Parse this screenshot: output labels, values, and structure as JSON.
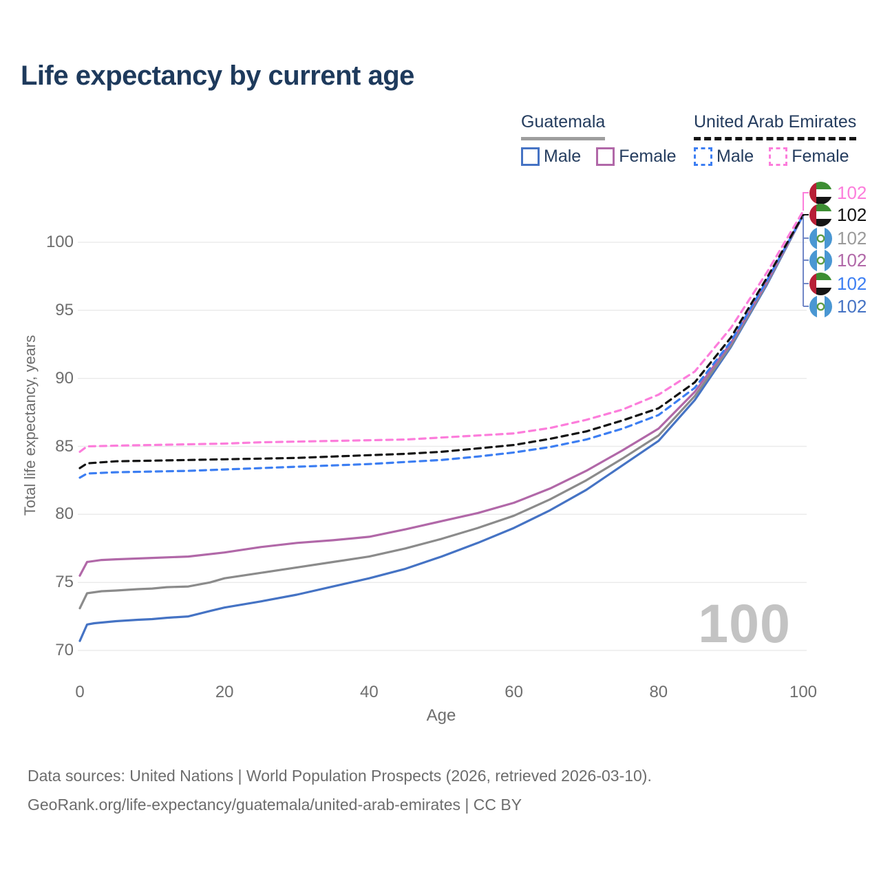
{
  "title": "Life expectancy by current age",
  "legend": {
    "groups": [
      {
        "country": "Guatemala",
        "line_style": "solid",
        "underline_color": "#9e9e9e",
        "items": [
          {
            "label": "Male",
            "color": "#4573c4"
          },
          {
            "label": "Female",
            "color": "#b168a8"
          }
        ]
      },
      {
        "country": "United Arab Emirates",
        "line_style": "dashed",
        "underline_color": "#141414",
        "items": [
          {
            "label": "Male",
            "color": "#3c7ef2"
          },
          {
            "label": "Female",
            "color": "#fc7ddb"
          }
        ]
      }
    ]
  },
  "age_indicator": "100",
  "end_labels": [
    {
      "flag": "are",
      "value": "102",
      "color": "#fc7ddb",
      "series": "United Arab Emirates Female"
    },
    {
      "flag": "are",
      "value": "102",
      "color": "#141414",
      "series": "United Arab Emirates Total"
    },
    {
      "flag": "gtm",
      "value": "102",
      "color": "#9a9a9a",
      "series": "Guatemala Total"
    },
    {
      "flag": "gtm",
      "value": "102",
      "color": "#b168a8",
      "series": "Guatemala Female"
    },
    {
      "flag": "are",
      "value": "102",
      "color": "#3c7ef2",
      "series": "United Arab Emirates Male"
    },
    {
      "flag": "gtm",
      "value": "102",
      "color": "#4573c4",
      "series": "Guatemala Male"
    }
  ],
  "footer": {
    "line1": "Data sources: United Nations | World Population Prospects (2026, retrieved 2026-03-10).",
    "line2": "GeoRank.org/life-expectancy/guatemala/united-arab-emirates | CC BY"
  },
  "chart_data": {
    "type": "line",
    "title": "Life expectancy by current age",
    "xlabel": "Age",
    "ylabel": "Total life expectancy, years",
    "xlim": [
      0,
      100
    ],
    "ylim": [
      70,
      102.5
    ],
    "xticks": [
      0,
      20,
      40,
      60,
      80,
      100
    ],
    "yticks": [
      70,
      75,
      80,
      85,
      90,
      95,
      100
    ],
    "grid": "horizontal",
    "gridline_color": "#ebebeb",
    "legend_position": "top-right",
    "series": [
      {
        "name": "Guatemala Male",
        "color": "#4573c4",
        "dash": false,
        "points": [
          [
            0,
            70.7
          ],
          [
            1,
            71.9
          ],
          [
            2,
            72.0
          ],
          [
            3,
            72.05
          ],
          [
            4,
            72.1
          ],
          [
            5,
            72.15
          ],
          [
            8,
            72.25
          ],
          [
            10,
            72.3
          ],
          [
            12,
            72.4
          ],
          [
            15,
            72.5
          ],
          [
            18,
            72.9
          ],
          [
            20,
            73.15
          ],
          [
            25,
            73.6
          ],
          [
            30,
            74.1
          ],
          [
            35,
            74.7
          ],
          [
            40,
            75.3
          ],
          [
            45,
            76.0
          ],
          [
            50,
            76.9
          ],
          [
            55,
            77.9
          ],
          [
            60,
            79.0
          ],
          [
            65,
            80.3
          ],
          [
            70,
            81.8
          ],
          [
            75,
            83.6
          ],
          [
            80,
            85.4
          ],
          [
            85,
            88.4
          ],
          [
            90,
            92.3
          ],
          [
            95,
            96.9
          ],
          [
            100,
            102
          ]
        ]
      },
      {
        "name": "Guatemala Total",
        "color": "#8b8b8b",
        "dash": false,
        "points": [
          [
            0,
            73.1
          ],
          [
            1,
            74.2
          ],
          [
            3,
            74.35
          ],
          [
            5,
            74.4
          ],
          [
            8,
            74.5
          ],
          [
            10,
            74.55
          ],
          [
            12,
            74.65
          ],
          [
            15,
            74.7
          ],
          [
            18,
            75.0
          ],
          [
            20,
            75.3
          ],
          [
            25,
            75.7
          ],
          [
            30,
            76.1
          ],
          [
            35,
            76.5
          ],
          [
            40,
            76.9
          ],
          [
            45,
            77.5
          ],
          [
            50,
            78.2
          ],
          [
            55,
            79.0
          ],
          [
            60,
            79.9
          ],
          [
            65,
            81.1
          ],
          [
            70,
            82.5
          ],
          [
            75,
            84.1
          ],
          [
            80,
            85.8
          ],
          [
            85,
            88.7
          ],
          [
            90,
            92.4
          ],
          [
            95,
            97.0
          ],
          [
            100,
            102
          ]
        ]
      },
      {
        "name": "Guatemala Female",
        "color": "#b168a8",
        "dash": false,
        "points": [
          [
            0,
            75.5
          ],
          [
            1,
            76.5
          ],
          [
            3,
            76.65
          ],
          [
            5,
            76.7
          ],
          [
            10,
            76.8
          ],
          [
            15,
            76.9
          ],
          [
            20,
            77.2
          ],
          [
            25,
            77.6
          ],
          [
            30,
            77.9
          ],
          [
            35,
            78.1
          ],
          [
            40,
            78.35
          ],
          [
            45,
            78.9
          ],
          [
            50,
            79.5
          ],
          [
            55,
            80.1
          ],
          [
            60,
            80.85
          ],
          [
            65,
            81.9
          ],
          [
            70,
            83.2
          ],
          [
            75,
            84.7
          ],
          [
            80,
            86.3
          ],
          [
            85,
            89.0
          ],
          [
            90,
            92.6
          ],
          [
            95,
            97.1
          ],
          [
            100,
            102
          ]
        ]
      },
      {
        "name": "United Arab Emirates Male",
        "color": "#3c7ef2",
        "dash": true,
        "points": [
          [
            0,
            82.7
          ],
          [
            1,
            83.0
          ],
          [
            5,
            83.1
          ],
          [
            10,
            83.15
          ],
          [
            15,
            83.2
          ],
          [
            20,
            83.3
          ],
          [
            25,
            83.4
          ],
          [
            30,
            83.5
          ],
          [
            35,
            83.6
          ],
          [
            40,
            83.7
          ],
          [
            45,
            83.85
          ],
          [
            50,
            84.0
          ],
          [
            55,
            84.25
          ],
          [
            60,
            84.55
          ],
          [
            65,
            84.95
          ],
          [
            70,
            85.5
          ],
          [
            75,
            86.3
          ],
          [
            80,
            87.3
          ],
          [
            85,
            89.3
          ],
          [
            90,
            92.7
          ],
          [
            95,
            97.2
          ],
          [
            100,
            102
          ]
        ]
      },
      {
        "name": "United Arab Emirates Total",
        "color": "#141414",
        "dash": true,
        "points": [
          [
            0,
            83.4
          ],
          [
            1,
            83.75
          ],
          [
            5,
            83.9
          ],
          [
            10,
            83.95
          ],
          [
            15,
            84.0
          ],
          [
            20,
            84.05
          ],
          [
            25,
            84.1
          ],
          [
            30,
            84.15
          ],
          [
            35,
            84.25
          ],
          [
            40,
            84.35
          ],
          [
            45,
            84.45
          ],
          [
            50,
            84.6
          ],
          [
            55,
            84.85
          ],
          [
            60,
            85.1
          ],
          [
            65,
            85.55
          ],
          [
            70,
            86.1
          ],
          [
            75,
            86.9
          ],
          [
            80,
            87.8
          ],
          [
            85,
            89.7
          ],
          [
            90,
            93.0
          ],
          [
            95,
            97.4
          ],
          [
            100,
            102
          ]
        ]
      },
      {
        "name": "United Arab Emirates Female",
        "color": "#fc7ddb",
        "dash": true,
        "points": [
          [
            0,
            84.6
          ],
          [
            1,
            85.0
          ],
          [
            5,
            85.05
          ],
          [
            10,
            85.1
          ],
          [
            15,
            85.15
          ],
          [
            20,
            85.2
          ],
          [
            25,
            85.3
          ],
          [
            30,
            85.35
          ],
          [
            35,
            85.4
          ],
          [
            40,
            85.45
          ],
          [
            45,
            85.5
          ],
          [
            50,
            85.65
          ],
          [
            55,
            85.8
          ],
          [
            60,
            85.95
          ],
          [
            65,
            86.35
          ],
          [
            70,
            86.95
          ],
          [
            75,
            87.7
          ],
          [
            80,
            88.8
          ],
          [
            85,
            90.5
          ],
          [
            90,
            93.7
          ],
          [
            95,
            97.8
          ],
          [
            100,
            102.3
          ]
        ]
      }
    ]
  }
}
